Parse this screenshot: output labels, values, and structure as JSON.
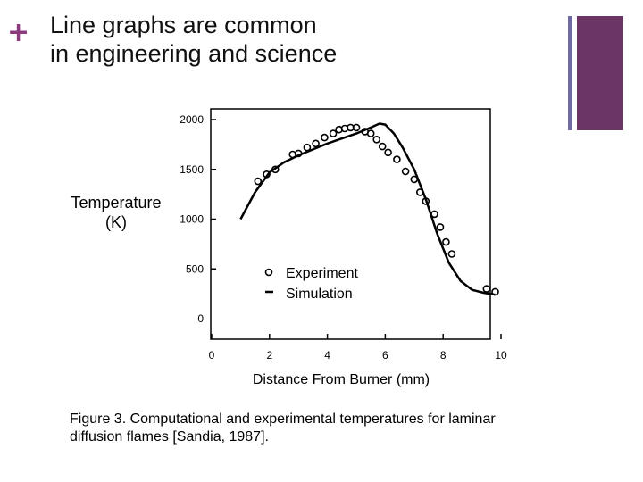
{
  "slide": {
    "bullet": "+",
    "title_line1": "Line graphs are common",
    "title_line2": "in engineering and science",
    "accent_color": "#6b3566",
    "caption_line1": "Figure 3. Computational and experimental temperatures for laminar",
    "caption_line2": "diffusion flames [Sandia, 1987]."
  },
  "chart_data": {
    "type": "line",
    "xlabel": "Distance From Burner (mm)",
    "ylabel_line1": "Temperature",
    "ylabel_line2": "(K)",
    "xlim": [
      0,
      10
    ],
    "ylim": [
      0,
      2000
    ],
    "x_ticks": [
      "0",
      "2",
      "4",
      "6",
      "8",
      "10"
    ],
    "y_ticks": [
      "0",
      "500",
      "1000",
      "1500",
      "2000"
    ],
    "grid": false,
    "legend_position": "center",
    "series": [
      {
        "name": "Experiment",
        "marker": "circle",
        "x": [
          1.6,
          1.9,
          2.2,
          2.8,
          3.0,
          3.3,
          3.6,
          3.9,
          4.2,
          4.4,
          4.6,
          4.8,
          5.0,
          5.3,
          5.5,
          5.7,
          5.9,
          6.1,
          6.4,
          6.7,
          7.0,
          7.2,
          7.4,
          7.7,
          7.9,
          8.1,
          8.3,
          9.5,
          9.8
        ],
        "y": [
          1380,
          1450,
          1500,
          1650,
          1660,
          1720,
          1760,
          1820,
          1860,
          1900,
          1910,
          1920,
          1920,
          1880,
          1860,
          1800,
          1730,
          1670,
          1600,
          1480,
          1400,
          1270,
          1180,
          1050,
          920,
          770,
          650,
          300,
          270
        ]
      },
      {
        "name": "Simulation",
        "x": [
          1.0,
          1.5,
          2.0,
          2.5,
          3.0,
          3.5,
          4.0,
          4.5,
          5.0,
          5.5,
          5.8,
          6.0,
          6.3,
          6.6,
          7.0,
          7.4,
          7.8,
          8.2,
          8.6,
          9.0,
          9.4,
          9.8
        ],
        "y": [
          1000,
          1270,
          1470,
          1570,
          1640,
          1700,
          1760,
          1810,
          1860,
          1920,
          1960,
          1950,
          1860,
          1720,
          1500,
          1200,
          850,
          560,
          380,
          290,
          260,
          240
        ]
      }
    ]
  }
}
